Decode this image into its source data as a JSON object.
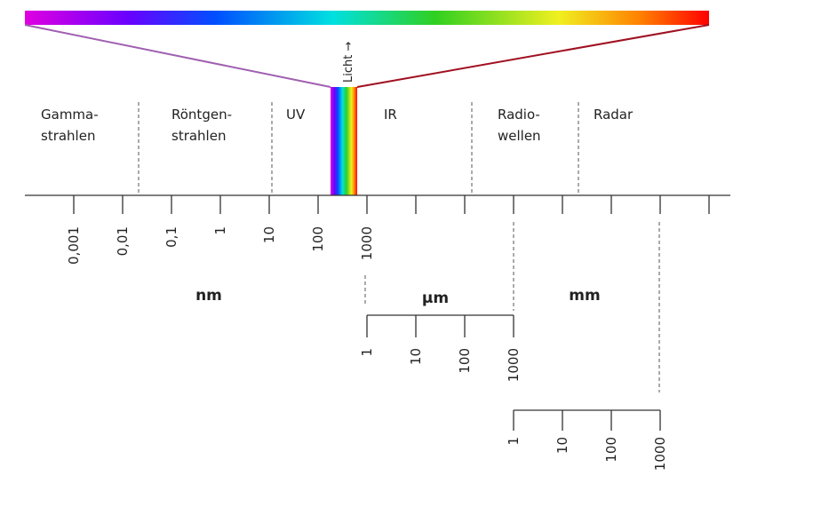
{
  "regions": [
    [
      "Gamma-",
      "strahlen"
    ],
    [
      "Röntgen-",
      "strahlen"
    ],
    [
      "UV"
    ],
    [
      "IR"
    ],
    [
      "Radio-",
      "wellen"
    ],
    [
      "Radar"
    ]
  ],
  "light_label": "Licht →",
  "scales": [
    {
      "unit": "nm",
      "ticks": [
        "0,001",
        "0,01",
        "0,1",
        "1",
        "10",
        "100",
        "1000"
      ]
    },
    {
      "unit": "µm",
      "ticks": [
        "1",
        "10",
        "100",
        "1000"
      ]
    },
    {
      "unit": "mm",
      "ticks": [
        "1",
        "10",
        "100",
        "1000"
      ]
    }
  ]
}
